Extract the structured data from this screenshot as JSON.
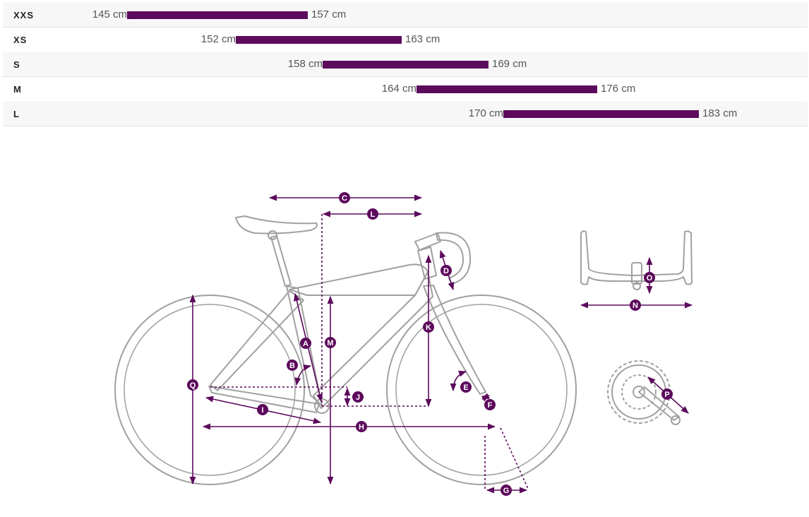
{
  "size_chart": {
    "rows": [
      {
        "size": "XXS",
        "min": "145 cm",
        "max": "157 cm"
      },
      {
        "size": "XS",
        "min": "152 cm",
        "max": "163 cm"
      },
      {
        "size": "S",
        "min": "158 cm",
        "max": "169 cm"
      },
      {
        "size": "M",
        "min": "164 cm",
        "max": "176 cm"
      },
      {
        "size": "L",
        "min": "170 cm",
        "max": "183 cm"
      }
    ]
  },
  "geometry_labels": {
    "A": "A",
    "B": "B",
    "C": "C",
    "D": "D",
    "E": "E",
    "F": "F",
    "G": "G",
    "H": "H",
    "I": "I",
    "J": "J",
    "K": "K",
    "L": "L",
    "M": "M",
    "N": "N",
    "O": "O",
    "P": "P",
    "Q": "Q"
  },
  "colors": {
    "accent": "#5c0a5c",
    "bike_line": "#9a9a9a",
    "row_alt": "#f7f7f7"
  }
}
